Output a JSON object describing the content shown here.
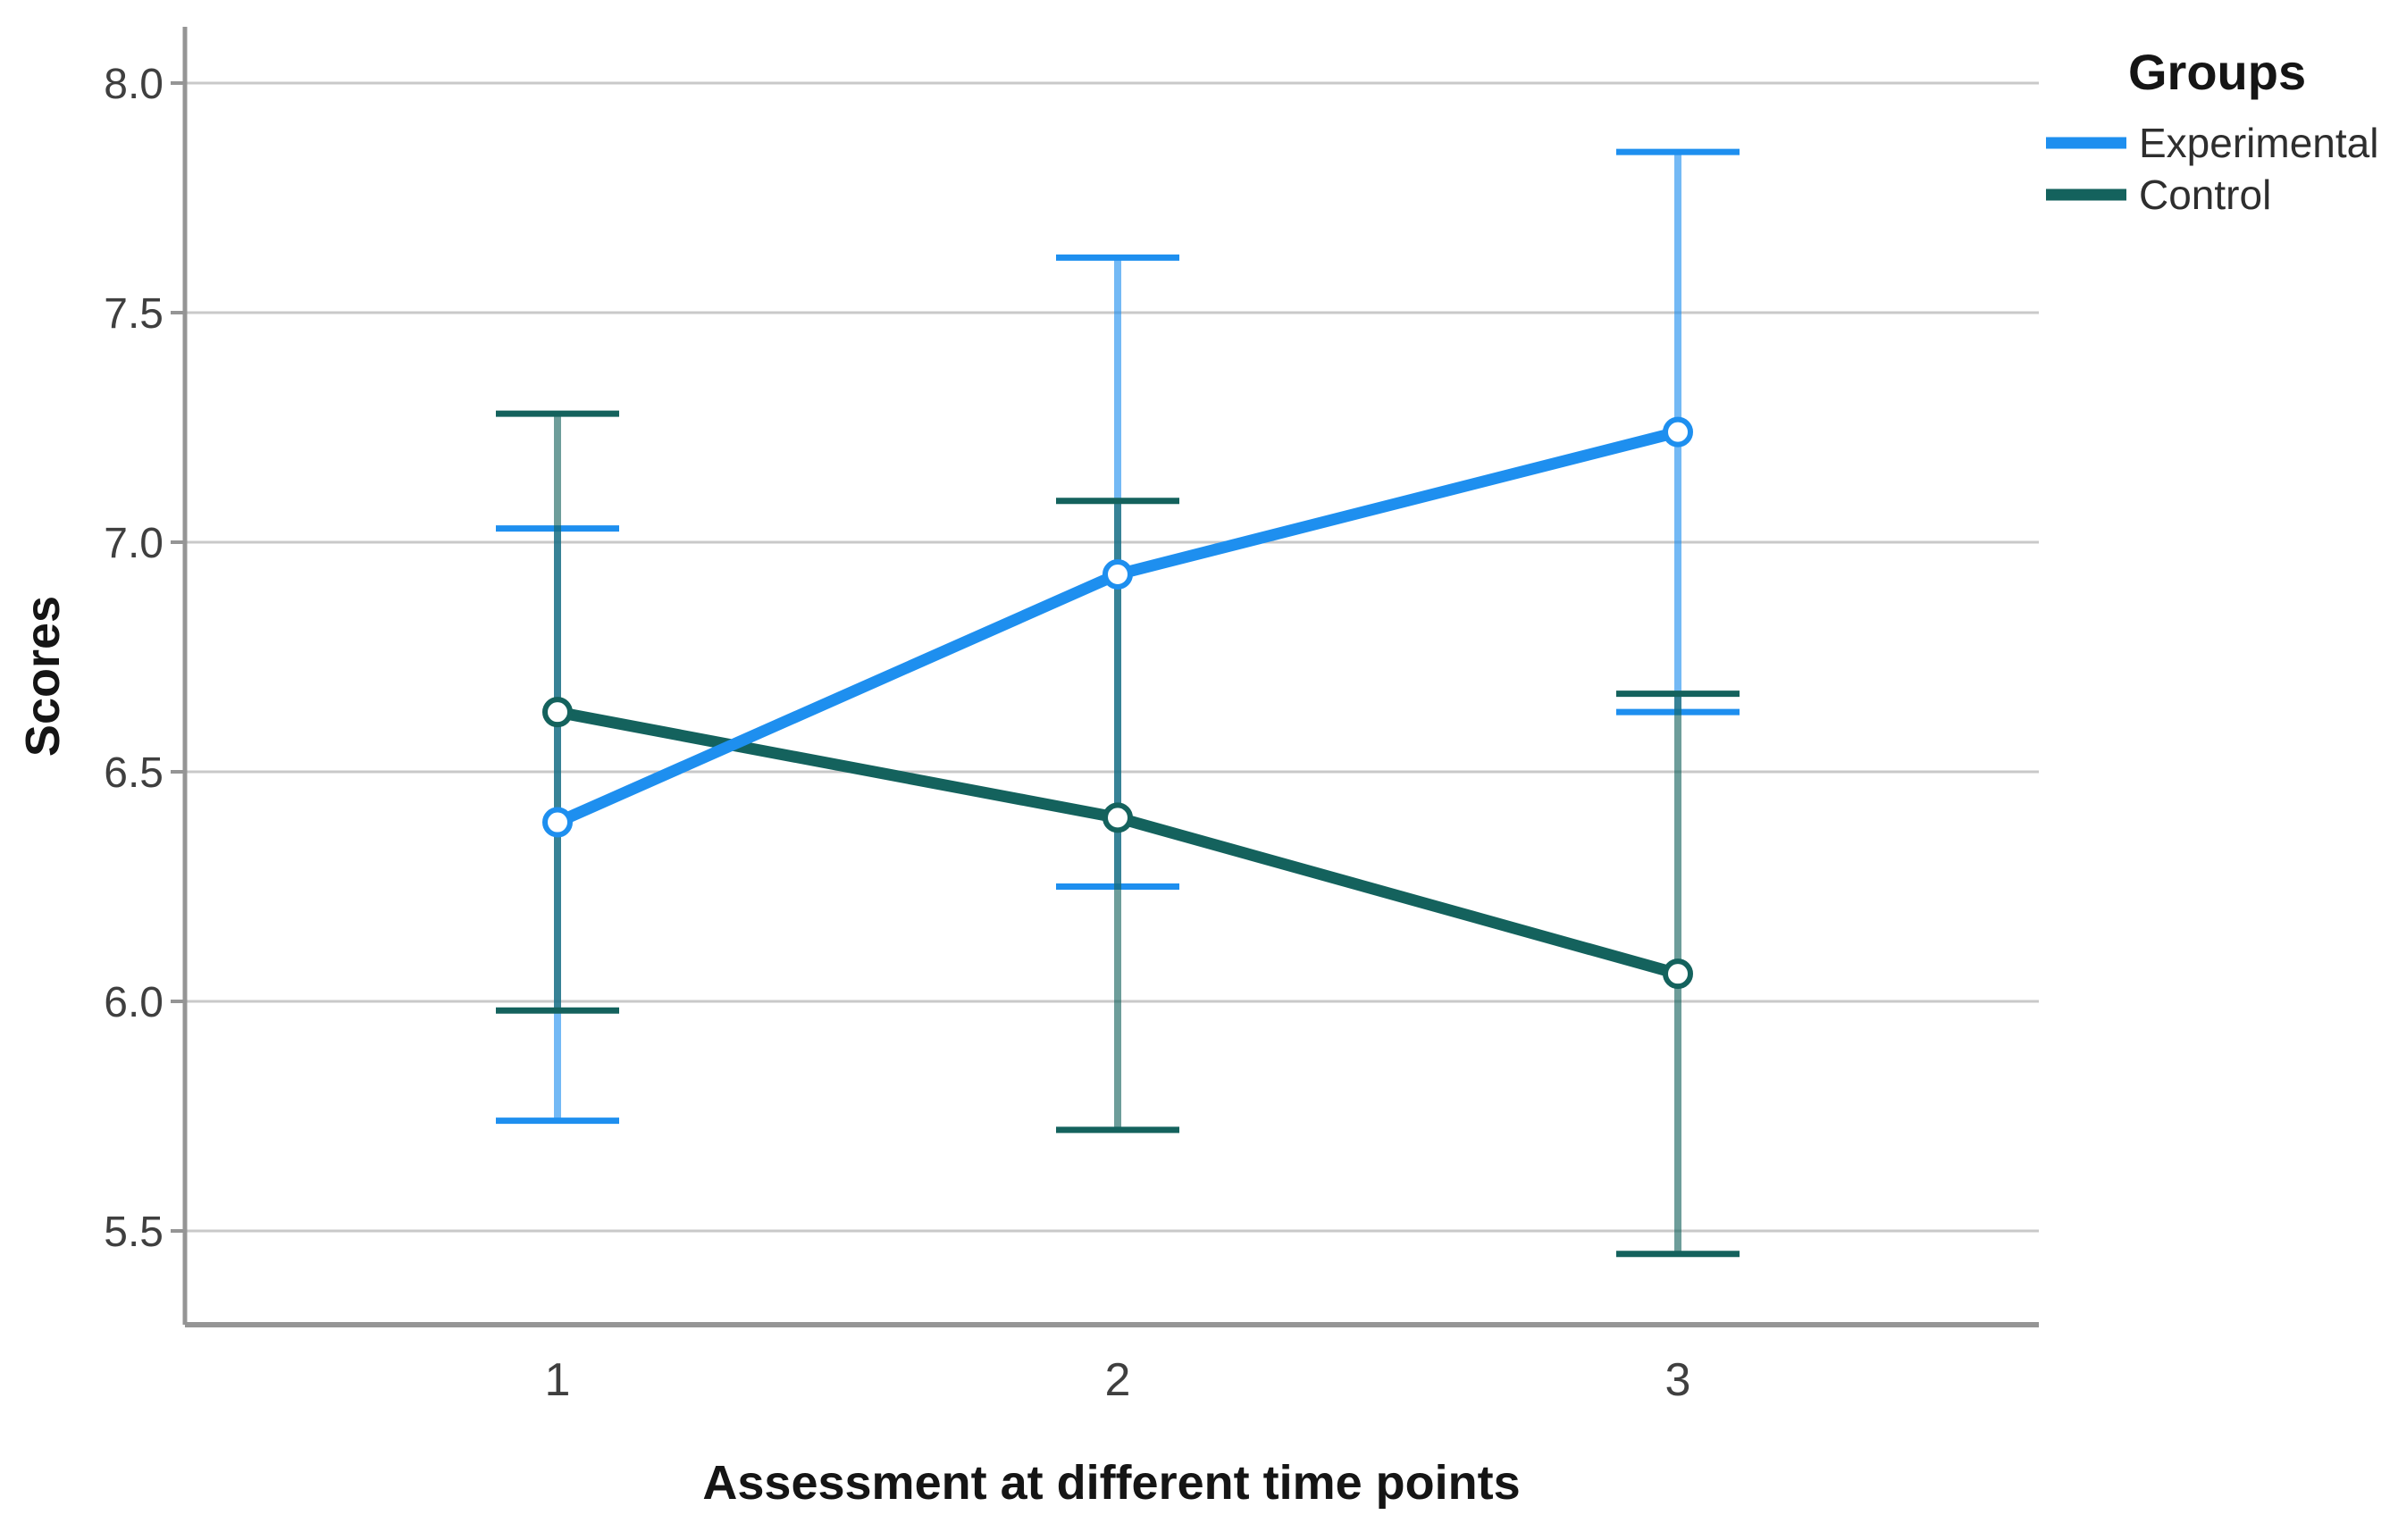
{
  "chart_data": {
    "type": "line",
    "title": "",
    "xlabel": "Assessment at different time points",
    "ylabel": "Scores",
    "x_tick_labels": [
      "1",
      "2",
      "3"
    ],
    "x_values": [
      1,
      2,
      3
    ],
    "y_tick_values": [
      8.0,
      7.5,
      7.0,
      6.5,
      6.0,
      5.5
    ],
    "y_tick_labels": [
      "8.0",
      "7.5",
      "7.0",
      "6.5",
      "6.0",
      "5.5"
    ],
    "ylim": [
      5.3,
      8.12
    ],
    "grid": "horizontal",
    "marker": "open-circle",
    "error_bars": "95% CI whiskers with caps",
    "legend": {
      "title": "Groups",
      "position": "outside-top-right"
    },
    "series": [
      {
        "name": "Experimental",
        "color": "#1E8FEF",
        "means": [
          6.39,
          6.93,
          7.24
        ],
        "ci_low": [
          5.74,
          6.25,
          6.63
        ],
        "ci_high": [
          7.03,
          7.62,
          7.85
        ]
      },
      {
        "name": "Control",
        "color": "#14625D",
        "means": [
          6.63,
          6.4,
          6.06
        ],
        "ci_low": [
          5.98,
          5.72,
          5.45
        ],
        "ci_high": [
          7.28,
          7.09,
          6.67
        ]
      }
    ],
    "colors": {
      "gridline": "#c9c9c9",
      "axis_line": "#959595",
      "tick_text": "#3f3f3f",
      "title_text": "#151515"
    }
  }
}
